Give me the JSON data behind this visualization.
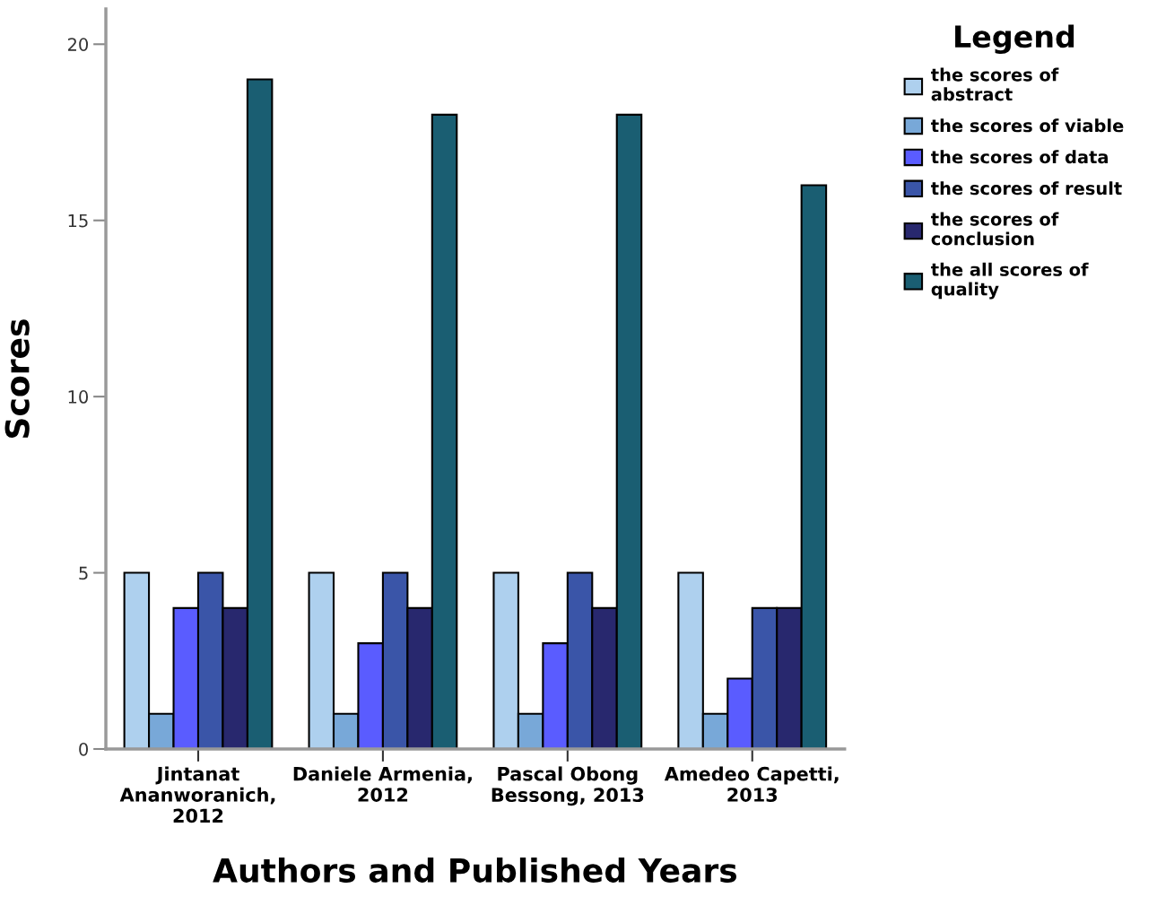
{
  "chart_data": {
    "type": "bar",
    "xlabel": "Authors and Published Years",
    "ylabel": "Scores",
    "categories": [
      "Jintanat\nAnanworanich,\n2012",
      "Daniele Armenia,\n2012",
      "Pascal Obong\nBessong, 2013",
      "Amedeo Capetti,\n2013"
    ],
    "series": [
      {
        "name": "the scores of\nabstract",
        "color": "#aed0ee",
        "values": [
          5,
          5,
          5,
          5
        ]
      },
      {
        "name": "the scores of viable",
        "color": "#78a8d8",
        "values": [
          1,
          1,
          1,
          1
        ]
      },
      {
        "name": "the scores of data",
        "color": "#5a5cff",
        "values": [
          4,
          3,
          3,
          2
        ]
      },
      {
        "name": "the scores of result",
        "color": "#3a55a8",
        "values": [
          5,
          5,
          5,
          4
        ]
      },
      {
        "name": "the scores of\nconclusion",
        "color": "#28286e",
        "values": [
          4,
          4,
          4,
          4
        ]
      },
      {
        "name": "the all scores of\nquality",
        "color": "#1a5e72",
        "values": [
          19,
          18,
          18,
          16
        ]
      }
    ],
    "ylim": [
      0,
      21
    ],
    "yticks": [
      0,
      5,
      10,
      15,
      20
    ],
    "grid": false,
    "legend": "top right",
    "legend_title": "Legend"
  }
}
